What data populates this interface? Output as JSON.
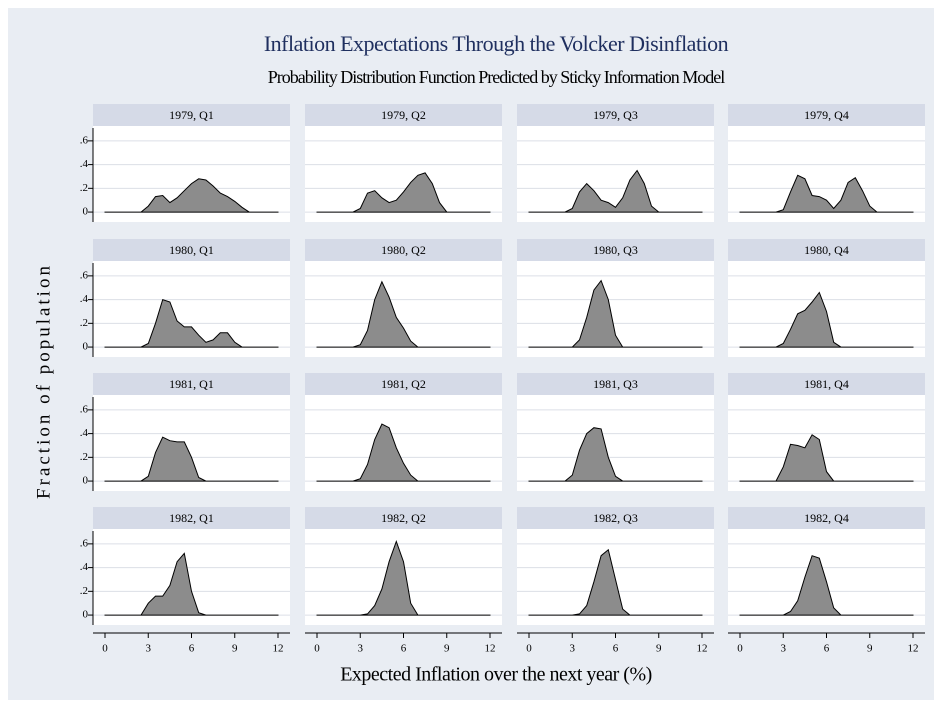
{
  "title": "Inflation Expectations Through the Volcker Disinflation",
  "subtitle": "Probability Distribution Function Predicted by Sticky Information Model",
  "x_label": "Expected Inflation over the next year (%)",
  "y_label": "Fraction of population",
  "xlim": [
    0,
    12
  ],
  "xticks": [
    0,
    3,
    6,
    9,
    12
  ],
  "ylim": [
    -0.05,
    0.7
  ],
  "yticks": [
    0,
    {
      "value": 0.2,
      "label": ".2"
    },
    {
      "value": 0.4,
      "label": ".4"
    },
    {
      "value": 0.6,
      "label": ".6"
    }
  ],
  "grid": true,
  "color": "#8c8c8c",
  "chart_data": [
    {
      "type": "area",
      "title": "1979, Q1",
      "x": [
        0,
        0.5,
        1,
        1.5,
        2,
        2.5,
        3,
        3.5,
        4,
        4.5,
        5,
        5.5,
        6,
        6.5,
        7,
        7.5,
        8,
        8.5,
        9,
        9.5,
        10,
        10.5,
        11,
        11.5,
        12
      ],
      "values": [
        0,
        0,
        0,
        0,
        0,
        0,
        0.05,
        0.13,
        0.14,
        0.08,
        0.12,
        0.18,
        0.24,
        0.28,
        0.27,
        0.22,
        0.16,
        0.13,
        0.09,
        0.04,
        0,
        0,
        0,
        0,
        0
      ]
    },
    {
      "type": "area",
      "title": "1979, Q2",
      "x": [
        0,
        0.5,
        1,
        1.5,
        2,
        2.5,
        3,
        3.5,
        4,
        4.5,
        5,
        5.5,
        6,
        6.5,
        7,
        7.5,
        8,
        8.5,
        9,
        9.5,
        10,
        10.5,
        11,
        11.5,
        12
      ],
      "values": [
        0,
        0,
        0,
        0,
        0,
        0,
        0.03,
        0.16,
        0.18,
        0.12,
        0.08,
        0.1,
        0.17,
        0.25,
        0.31,
        0.33,
        0.24,
        0.08,
        0,
        0,
        0,
        0,
        0,
        0,
        0
      ]
    },
    {
      "type": "area",
      "title": "1979, Q3",
      "x": [
        0,
        0.5,
        1,
        1.5,
        2,
        2.5,
        3,
        3.5,
        4,
        4.5,
        5,
        5.5,
        6,
        6.5,
        7,
        7.5,
        8,
        8.5,
        9,
        9.5,
        10,
        10.5,
        11,
        11.5,
        12
      ],
      "values": [
        0,
        0,
        0,
        0,
        0,
        0,
        0.03,
        0.17,
        0.24,
        0.18,
        0.1,
        0.08,
        0.04,
        0.12,
        0.27,
        0.35,
        0.24,
        0.05,
        0,
        0,
        0,
        0,
        0,
        0,
        0
      ]
    },
    {
      "type": "area",
      "title": "1979, Q4",
      "x": [
        0,
        0.5,
        1,
        1.5,
        2,
        2.5,
        3,
        3.5,
        4,
        4.5,
        5,
        5.5,
        6,
        6.5,
        7,
        7.5,
        8,
        8.5,
        9,
        9.5,
        10,
        10.5,
        11,
        11.5,
        12
      ],
      "values": [
        0,
        0,
        0,
        0,
        0,
        0,
        0.02,
        0.17,
        0.31,
        0.28,
        0.14,
        0.13,
        0.1,
        0.03,
        0.1,
        0.25,
        0.29,
        0.18,
        0.05,
        0,
        0,
        0,
        0,
        0,
        0
      ]
    },
    {
      "type": "area",
      "title": "1980, Q1",
      "x": [
        0,
        0.5,
        1,
        1.5,
        2,
        2.5,
        3,
        3.5,
        4,
        4.5,
        5,
        5.5,
        6,
        6.5,
        7,
        7.5,
        8,
        8.5,
        9,
        9.5,
        10,
        10.5,
        11,
        11.5,
        12
      ],
      "values": [
        0,
        0,
        0,
        0,
        0,
        0,
        0.03,
        0.2,
        0.4,
        0.38,
        0.22,
        0.17,
        0.17,
        0.1,
        0.04,
        0.06,
        0.12,
        0.12,
        0.04,
        0,
        0,
        0,
        0,
        0,
        0
      ]
    },
    {
      "type": "area",
      "title": "1980, Q2",
      "x": [
        0,
        0.5,
        1,
        1.5,
        2,
        2.5,
        3,
        3.5,
        4,
        4.5,
        5,
        5.5,
        6,
        6.5,
        7,
        7.5,
        8,
        8.5,
        9,
        9.5,
        10,
        10.5,
        11,
        11.5,
        12
      ],
      "values": [
        0,
        0,
        0,
        0,
        0,
        0,
        0.02,
        0.14,
        0.4,
        0.55,
        0.42,
        0.25,
        0.16,
        0.05,
        0,
        0,
        0,
        0,
        0,
        0,
        0,
        0,
        0,
        0,
        0
      ]
    },
    {
      "type": "area",
      "title": "1980, Q3",
      "x": [
        0,
        0.5,
        1,
        1.5,
        2,
        2.5,
        3,
        3.5,
        4,
        4.5,
        5,
        5.5,
        6,
        6.5,
        7,
        7.5,
        8,
        8.5,
        9,
        9.5,
        10,
        10.5,
        11,
        11.5,
        12
      ],
      "values": [
        0,
        0,
        0,
        0,
        0,
        0,
        0,
        0.06,
        0.25,
        0.48,
        0.56,
        0.4,
        0.1,
        0,
        0,
        0,
        0,
        0,
        0,
        0,
        0,
        0,
        0,
        0,
        0
      ]
    },
    {
      "type": "area",
      "title": "1980, Q4",
      "x": [
        0,
        0.5,
        1,
        1.5,
        2,
        2.5,
        3,
        3.5,
        4,
        4.5,
        5,
        5.5,
        6,
        6.5,
        7,
        7.5,
        8,
        8.5,
        9,
        9.5,
        10,
        10.5,
        11,
        11.5,
        12
      ],
      "values": [
        0,
        0,
        0,
        0,
        0,
        0,
        0.03,
        0.15,
        0.28,
        0.31,
        0.38,
        0.46,
        0.3,
        0.04,
        0,
        0,
        0,
        0,
        0,
        0,
        0,
        0,
        0,
        0,
        0
      ]
    },
    {
      "type": "area",
      "title": "1981, Q1",
      "x": [
        0,
        0.5,
        1,
        1.5,
        2,
        2.5,
        3,
        3.5,
        4,
        4.5,
        5,
        5.5,
        6,
        6.5,
        7,
        7.5,
        8,
        8.5,
        9,
        9.5,
        10,
        10.5,
        11,
        11.5,
        12
      ],
      "values": [
        0,
        0,
        0,
        0,
        0,
        0,
        0.04,
        0.24,
        0.37,
        0.34,
        0.33,
        0.33,
        0.2,
        0.03,
        0,
        0,
        0,
        0,
        0,
        0,
        0,
        0,
        0,
        0,
        0
      ]
    },
    {
      "type": "area",
      "title": "1981, Q2",
      "x": [
        0,
        0.5,
        1,
        1.5,
        2,
        2.5,
        3,
        3.5,
        4,
        4.5,
        5,
        5.5,
        6,
        6.5,
        7,
        7.5,
        8,
        8.5,
        9,
        9.5,
        10,
        10.5,
        11,
        11.5,
        12
      ],
      "values": [
        0,
        0,
        0,
        0,
        0,
        0,
        0.02,
        0.14,
        0.35,
        0.48,
        0.45,
        0.28,
        0.15,
        0.05,
        0,
        0,
        0,
        0,
        0,
        0,
        0,
        0,
        0,
        0,
        0
      ]
    },
    {
      "type": "area",
      "title": "1981, Q3",
      "x": [
        0,
        0.5,
        1,
        1.5,
        2,
        2.5,
        3,
        3.5,
        4,
        4.5,
        5,
        5.5,
        6,
        6.5,
        7,
        7.5,
        8,
        8.5,
        9,
        9.5,
        10,
        10.5,
        11,
        11.5,
        12
      ],
      "values": [
        0,
        0,
        0,
        0,
        0,
        0,
        0.05,
        0.26,
        0.4,
        0.45,
        0.44,
        0.2,
        0.04,
        0,
        0,
        0,
        0,
        0,
        0,
        0,
        0,
        0,
        0,
        0,
        0
      ]
    },
    {
      "type": "area",
      "title": "1981, Q4",
      "x": [
        0,
        0.5,
        1,
        1.5,
        2,
        2.5,
        3,
        3.5,
        4,
        4.5,
        5,
        5.5,
        6,
        6.5,
        7,
        7.5,
        8,
        8.5,
        9,
        9.5,
        10,
        10.5,
        11,
        11.5,
        12
      ],
      "values": [
        0,
        0,
        0,
        0,
        0,
        0,
        0.12,
        0.31,
        0.3,
        0.28,
        0.39,
        0.35,
        0.08,
        0,
        0,
        0,
        0,
        0,
        0,
        0,
        0,
        0,
        0,
        0,
        0
      ]
    },
    {
      "type": "area",
      "title": "1982, Q1",
      "x": [
        0,
        0.5,
        1,
        1.5,
        2,
        2.5,
        3,
        3.5,
        4,
        4.5,
        5,
        5.5,
        6,
        6.5,
        7,
        7.5,
        8,
        8.5,
        9,
        9.5,
        10,
        10.5,
        11,
        11.5,
        12
      ],
      "values": [
        0,
        0,
        0,
        0,
        0,
        0,
        0.1,
        0.16,
        0.16,
        0.25,
        0.45,
        0.52,
        0.2,
        0.02,
        0,
        0,
        0,
        0,
        0,
        0,
        0,
        0,
        0,
        0,
        0
      ]
    },
    {
      "type": "area",
      "title": "1982, Q2",
      "x": [
        0,
        0.5,
        1,
        1.5,
        2,
        2.5,
        3,
        3.5,
        4,
        4.5,
        5,
        5.5,
        6,
        6.5,
        7,
        7.5,
        8,
        8.5,
        9,
        9.5,
        10,
        10.5,
        11,
        11.5,
        12
      ],
      "values": [
        0,
        0,
        0,
        0,
        0,
        0,
        0,
        0.01,
        0.08,
        0.22,
        0.45,
        0.62,
        0.45,
        0.1,
        0,
        0,
        0,
        0,
        0,
        0,
        0,
        0,
        0,
        0,
        0
      ]
    },
    {
      "type": "area",
      "title": "1982, Q3",
      "x": [
        0,
        0.5,
        1,
        1.5,
        2,
        2.5,
        3,
        3.5,
        4,
        4.5,
        5,
        5.5,
        6,
        6.5,
        7,
        7.5,
        8,
        8.5,
        9,
        9.5,
        10,
        10.5,
        11,
        11.5,
        12
      ],
      "values": [
        0,
        0,
        0,
        0,
        0,
        0,
        0,
        0.01,
        0.08,
        0.28,
        0.5,
        0.55,
        0.3,
        0.05,
        0,
        0,
        0,
        0,
        0,
        0,
        0,
        0,
        0,
        0,
        0
      ]
    },
    {
      "type": "area",
      "title": "1982, Q4",
      "x": [
        0,
        0.5,
        1,
        1.5,
        2,
        2.5,
        3,
        3.5,
        4,
        4.5,
        5,
        5.5,
        6,
        6.5,
        7,
        7.5,
        8,
        8.5,
        9,
        9.5,
        10,
        10.5,
        11,
        11.5,
        12
      ],
      "values": [
        0,
        0,
        0,
        0,
        0,
        0,
        0,
        0.03,
        0.12,
        0.32,
        0.5,
        0.48,
        0.28,
        0.06,
        0,
        0,
        0,
        0,
        0,
        0,
        0,
        0,
        0,
        0,
        0
      ]
    }
  ]
}
